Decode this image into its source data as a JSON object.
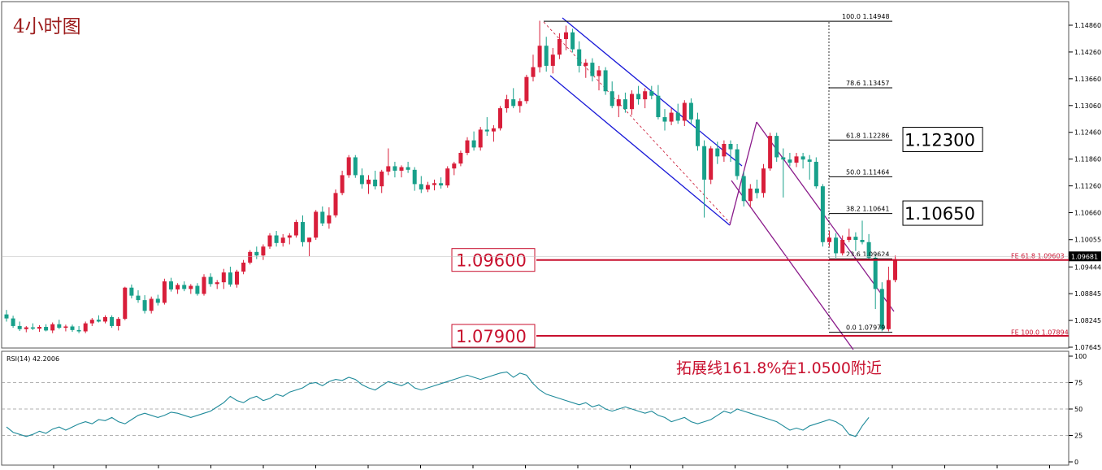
{
  "chart_data": {
    "type": "candlestick",
    "title": "4小时图",
    "symbol_timeframe_note": "",
    "price_axis": {
      "ticks": [
        "1.14860",
        "1.14260",
        "1.13660",
        "1.13060",
        "1.12460",
        "1.11860",
        "1.11260",
        "1.10660",
        "1.10055",
        "1.09444",
        "1.08845",
        "1.08245",
        "1.07645"
      ],
      "ylim": [
        1.0745,
        1.1515
      ],
      "current_price": "1.09681"
    },
    "colors": {
      "up": "#d81e3a",
      "down": "#17a08a",
      "channel_blue": "#1a1ad8",
      "channel_purple": "#8a1a8a",
      "level_line": "#c8102e"
    },
    "candles": [
      [
        1.0838,
        1.0848,
        1.0822,
        1.0829
      ],
      [
        1.0829,
        1.0835,
        1.0808,
        1.0812
      ],
      [
        1.0812,
        1.0822,
        1.0801,
        1.0805
      ],
      [
        1.0805,
        1.0812,
        1.0798,
        1.0809
      ],
      [
        1.0809,
        1.0818,
        1.0803,
        1.0806
      ],
      [
        1.0806,
        1.0814,
        1.0799,
        1.081
      ],
      [
        1.081,
        1.0816,
        1.08,
        1.0802
      ],
      [
        1.0802,
        1.082,
        1.0796,
        1.0816
      ],
      [
        1.0816,
        1.0826,
        1.0805,
        1.0808
      ],
      [
        1.0808,
        1.0815,
        1.08,
        1.0811
      ],
      [
        1.0811,
        1.0815,
        1.0799,
        1.0803
      ],
      [
        1.0803,
        1.0812,
        1.0796,
        1.08
      ],
      [
        1.08,
        1.0822,
        1.0796,
        1.0818
      ],
      [
        1.0818,
        1.083,
        1.0812,
        1.0826
      ],
      [
        1.0826,
        1.0836,
        1.082,
        1.0822
      ],
      [
        1.0822,
        1.0836,
        1.0818,
        1.0832
      ],
      [
        1.0832,
        1.0836,
        1.0808,
        1.0812
      ],
      [
        1.0812,
        1.0832,
        1.0802,
        1.0828
      ],
      [
        1.0828,
        1.09,
        1.0825,
        1.0898
      ],
      [
        1.0898,
        1.0905,
        1.0874,
        1.088
      ],
      [
        1.088,
        1.0892,
        1.0864,
        1.087
      ],
      [
        1.087,
        1.0881,
        1.084,
        1.0846
      ],
      [
        1.0846,
        1.0878,
        1.084,
        1.0873
      ],
      [
        1.0873,
        1.0882,
        1.0858,
        1.0864
      ],
      [
        1.0864,
        1.0918,
        1.086,
        1.0912
      ],
      [
        1.0912,
        1.092,
        1.0889,
        1.0894
      ],
      [
        1.0894,
        1.0908,
        1.0884,
        1.0904
      ],
      [
        1.0904,
        1.0912,
        1.089,
        1.0895
      ],
      [
        1.0895,
        1.0906,
        1.0884,
        1.0902
      ],
      [
        1.0902,
        1.0908,
        1.088,
        1.0884
      ],
      [
        1.0884,
        1.0928,
        1.088,
        1.0922
      ],
      [
        1.0922,
        1.093,
        1.09,
        1.0906
      ],
      [
        1.0906,
        1.0915,
        1.0895,
        1.091
      ],
      [
        1.091,
        1.094,
        1.0895,
        1.0932
      ],
      [
        1.0932,
        1.0945,
        1.09,
        1.0905
      ],
      [
        1.0905,
        1.0938,
        1.0898,
        1.0934
      ],
      [
        1.0934,
        1.096,
        1.0928,
        1.0954
      ],
      [
        1.0954,
        1.0982,
        1.095,
        1.0978
      ],
      [
        1.0978,
        1.099,
        1.0962,
        1.097
      ],
      [
        1.097,
        1.0995,
        1.096,
        1.099
      ],
      [
        1.099,
        1.102,
        1.0985,
        1.1015
      ],
      [
        1.1015,
        1.1025,
        1.099,
        1.0998
      ],
      [
        1.0998,
        1.1018,
        1.099,
        1.101
      ],
      [
        1.101,
        1.102,
        1.0995,
        1.1015
      ],
      [
        1.1015,
        1.105,
        1.101,
        1.1045
      ],
      [
        1.1045,
        1.106,
        1.099,
        1.1
      ],
      [
        1.1,
        1.101,
        1.0968,
        1.101
      ],
      [
        1.101,
        1.1072,
        1.1005,
        1.1068
      ],
      [
        1.1068,
        1.108,
        1.1036,
        1.1042
      ],
      [
        1.1042,
        1.1078,
        1.103,
        1.106
      ],
      [
        1.106,
        1.1118,
        1.1055,
        1.111
      ],
      [
        1.111,
        1.116,
        1.1105,
        1.115
      ],
      [
        1.115,
        1.1195,
        1.1144,
        1.119
      ],
      [
        1.119,
        1.1195,
        1.1144,
        1.115
      ],
      [
        1.115,
        1.1165,
        1.112,
        1.113
      ],
      [
        1.113,
        1.115,
        1.1108,
        1.114
      ],
      [
        1.114,
        1.116,
        1.1118,
        1.1125
      ],
      [
        1.1125,
        1.1162,
        1.111,
        1.1158
      ],
      [
        1.1158,
        1.121,
        1.115,
        1.117
      ],
      [
        1.117,
        1.118,
        1.1145,
        1.116
      ],
      [
        1.116,
        1.1172,
        1.1145,
        1.1168
      ],
      [
        1.1168,
        1.118,
        1.1155,
        1.1162
      ],
      [
        1.1162,
        1.1168,
        1.1115,
        1.113
      ],
      [
        1.113,
        1.1148,
        1.111,
        1.1118
      ],
      [
        1.1118,
        1.1135,
        1.1112,
        1.1128
      ],
      [
        1.1128,
        1.114,
        1.1116,
        1.1132
      ],
      [
        1.1132,
        1.1145,
        1.112,
        1.1127
      ],
      [
        1.1127,
        1.117,
        1.1122,
        1.1165
      ],
      [
        1.1165,
        1.118,
        1.115,
        1.1176
      ],
      [
        1.1176,
        1.1205,
        1.117,
        1.12
      ],
      [
        1.12,
        1.1235,
        1.1195,
        1.1228
      ],
      [
        1.1228,
        1.1248,
        1.1205,
        1.1212
      ],
      [
        1.1212,
        1.1258,
        1.1205,
        1.1252
      ],
      [
        1.1252,
        1.128,
        1.1238,
        1.1248
      ],
      [
        1.1248,
        1.1262,
        1.1225,
        1.1255
      ],
      [
        1.1255,
        1.1305,
        1.125,
        1.13
      ],
      [
        1.13,
        1.133,
        1.129,
        1.132
      ],
      [
        1.132,
        1.1345,
        1.13,
        1.1305
      ],
      [
        1.1305,
        1.1322,
        1.129,
        1.1316
      ],
      [
        1.1316,
        1.1375,
        1.131,
        1.137
      ],
      [
        1.137,
        1.142,
        1.136,
        1.1392
      ],
      [
        1.1392,
        1.1496,
        1.138,
        1.144
      ],
      [
        1.144,
        1.146,
        1.1382,
        1.1395
      ],
      [
        1.1395,
        1.1435,
        1.1378,
        1.142
      ],
      [
        1.142,
        1.1468,
        1.141,
        1.1455
      ],
      [
        1.1455,
        1.1485,
        1.143,
        1.147
      ],
      [
        1.147,
        1.1478,
        1.1425,
        1.1432
      ],
      [
        1.1432,
        1.145,
        1.138,
        1.1395
      ],
      [
        1.1395,
        1.141,
        1.1368,
        1.1402
      ],
      [
        1.1402,
        1.1412,
        1.136,
        1.1372
      ],
      [
        1.1372,
        1.1395,
        1.134,
        1.1385
      ],
      [
        1.1385,
        1.1392,
        1.133,
        1.1338
      ],
      [
        1.1338,
        1.136,
        1.13,
        1.1305
      ],
      [
        1.1305,
        1.133,
        1.128,
        1.132
      ],
      [
        1.132,
        1.1335,
        1.129,
        1.1298
      ],
      [
        1.1298,
        1.134,
        1.1285,
        1.1332
      ],
      [
        1.1332,
        1.135,
        1.1308,
        1.132
      ],
      [
        1.132,
        1.1345,
        1.13,
        1.1338
      ],
      [
        1.1338,
        1.135,
        1.132,
        1.1328
      ],
      [
        1.1328,
        1.1352,
        1.1275,
        1.128
      ],
      [
        1.128,
        1.1298,
        1.125,
        1.127
      ],
      [
        1.127,
        1.13,
        1.1262,
        1.129
      ],
      [
        1.129,
        1.131,
        1.1265,
        1.1272
      ],
      [
        1.1272,
        1.1318,
        1.126,
        1.1312
      ],
      [
        1.1312,
        1.1322,
        1.1265,
        1.1275
      ],
      [
        1.1275,
        1.129,
        1.1205,
        1.1215
      ],
      [
        1.1215,
        1.1228,
        1.1055,
        1.114
      ],
      [
        1.114,
        1.1215,
        1.113,
        1.121
      ],
      [
        1.121,
        1.1225,
        1.1175,
        1.1192
      ],
      [
        1.1192,
        1.1228,
        1.118,
        1.122
      ],
      [
        1.122,
        1.1228,
        1.118,
        1.1208
      ],
      [
        1.1208,
        1.122,
        1.114,
        1.1148
      ],
      [
        1.1148,
        1.1158,
        1.108,
        1.1092
      ],
      [
        1.1092,
        1.113,
        1.1078,
        1.112
      ],
      [
        1.112,
        1.114,
        1.1098,
        1.111
      ],
      [
        1.111,
        1.1175,
        1.11,
        1.1165
      ],
      [
        1.1165,
        1.1245,
        1.116,
        1.1238
      ],
      [
        1.1238,
        1.1245,
        1.118,
        1.119
      ],
      [
        1.119,
        1.121,
        1.11,
        1.1185
      ],
      [
        1.1185,
        1.12,
        1.117,
        1.1178
      ],
      [
        1.1178,
        1.12,
        1.1168,
        1.1192
      ],
      [
        1.1192,
        1.12,
        1.1165,
        1.1185
      ],
      [
        1.1185,
        1.1195,
        1.114,
        1.118
      ],
      [
        1.118,
        1.119,
        1.112,
        1.1125
      ],
      [
        1.1125,
        1.113,
        1.099,
        1.1
      ],
      [
        1.1,
        1.1025,
        1.099,
        1.101
      ],
      [
        1.101,
        1.102,
        1.0965,
        1.0975
      ],
      [
        1.0975,
        1.1015,
        1.097,
        1.1005
      ],
      [
        1.1005,
        1.103,
        1.1,
        1.1012
      ],
      [
        1.1012,
        1.1022,
        1.098,
        1.1005
      ],
      [
        1.1005,
        1.1048,
        1.0995,
        1.1
      ],
      [
        1.1,
        1.1018,
        1.096,
        1.0965
      ],
      [
        1.0965,
        1.0972,
        1.085,
        1.0895
      ],
      [
        1.0895,
        1.091,
        1.08,
        1.0805
      ],
      [
        1.0805,
        1.0945,
        1.08,
        1.0915
      ],
      [
        1.0915,
        1.097,
        1.091,
        1.0962
      ]
    ],
    "fibonacci": [
      {
        "label": "100.0  1.14948",
        "value": 1.14948
      },
      {
        "label": "78.6  1.13457",
        "value": 1.13457
      },
      {
        "label": "61.8  1.12286",
        "value": 1.12286
      },
      {
        "label": "50.0  1.11464",
        "value": 1.11464
      },
      {
        "label": "38.2  1.10641",
        "value": 1.10641
      },
      {
        "label": "23.6  1.09624",
        "value": 1.09624
      },
      {
        "label": "0.0  1.07979",
        "value": 1.07979
      }
    ],
    "fib_expansion": [
      {
        "label": "FE 61.8  1.09603",
        "value": 1.09603
      },
      {
        "label": "FE 100.0  1.07894",
        "value": 1.07894
      }
    ],
    "key_levels": [
      {
        "label": "1.12300",
        "value": 1.123,
        "style": "black"
      },
      {
        "label": "1.10650",
        "value": 1.1065,
        "style": "black"
      },
      {
        "label": "1.09600",
        "value": 1.096,
        "style": "red"
      },
      {
        "label": "1.07900",
        "value": 1.079,
        "style": "red"
      }
    ],
    "annotation": "拓展线161.8%在1.0500附近",
    "rsi": {
      "label": "RSI(14) 42.2006",
      "ylim": [
        0,
        100
      ],
      "ticks": [
        "100",
        "75",
        "50",
        "25",
        "0"
      ],
      "levels": [
        75,
        50,
        25
      ],
      "values": [
        33,
        28,
        26,
        24,
        26,
        29,
        27,
        31,
        33,
        30,
        33,
        36,
        38,
        36,
        40,
        39,
        42,
        38,
        36,
        40,
        44,
        46,
        44,
        42,
        44,
        47,
        46,
        44,
        42,
        44,
        46,
        48,
        52,
        56,
        62,
        58,
        56,
        60,
        62,
        58,
        60,
        64,
        62,
        66,
        68,
        70,
        74,
        75,
        72,
        76,
        78,
        77,
        80,
        78,
        73,
        70,
        68,
        72,
        76,
        74,
        72,
        75,
        70,
        68,
        70,
        72,
        74,
        76,
        78,
        80,
        82,
        80,
        78,
        80,
        82,
        84,
        85,
        80,
        84,
        82,
        74,
        68,
        64,
        62,
        60,
        58,
        56,
        54,
        56,
        52,
        54,
        50,
        48,
        50,
        52,
        50,
        48,
        46,
        48,
        44,
        42,
        38,
        40,
        42,
        38,
        36,
        38,
        40,
        44,
        48,
        46,
        50,
        48,
        46,
        44,
        42,
        40,
        38,
        34,
        30,
        32,
        30,
        34,
        36,
        38,
        40,
        38,
        34,
        26,
        24,
        34,
        42
      ]
    }
  }
}
